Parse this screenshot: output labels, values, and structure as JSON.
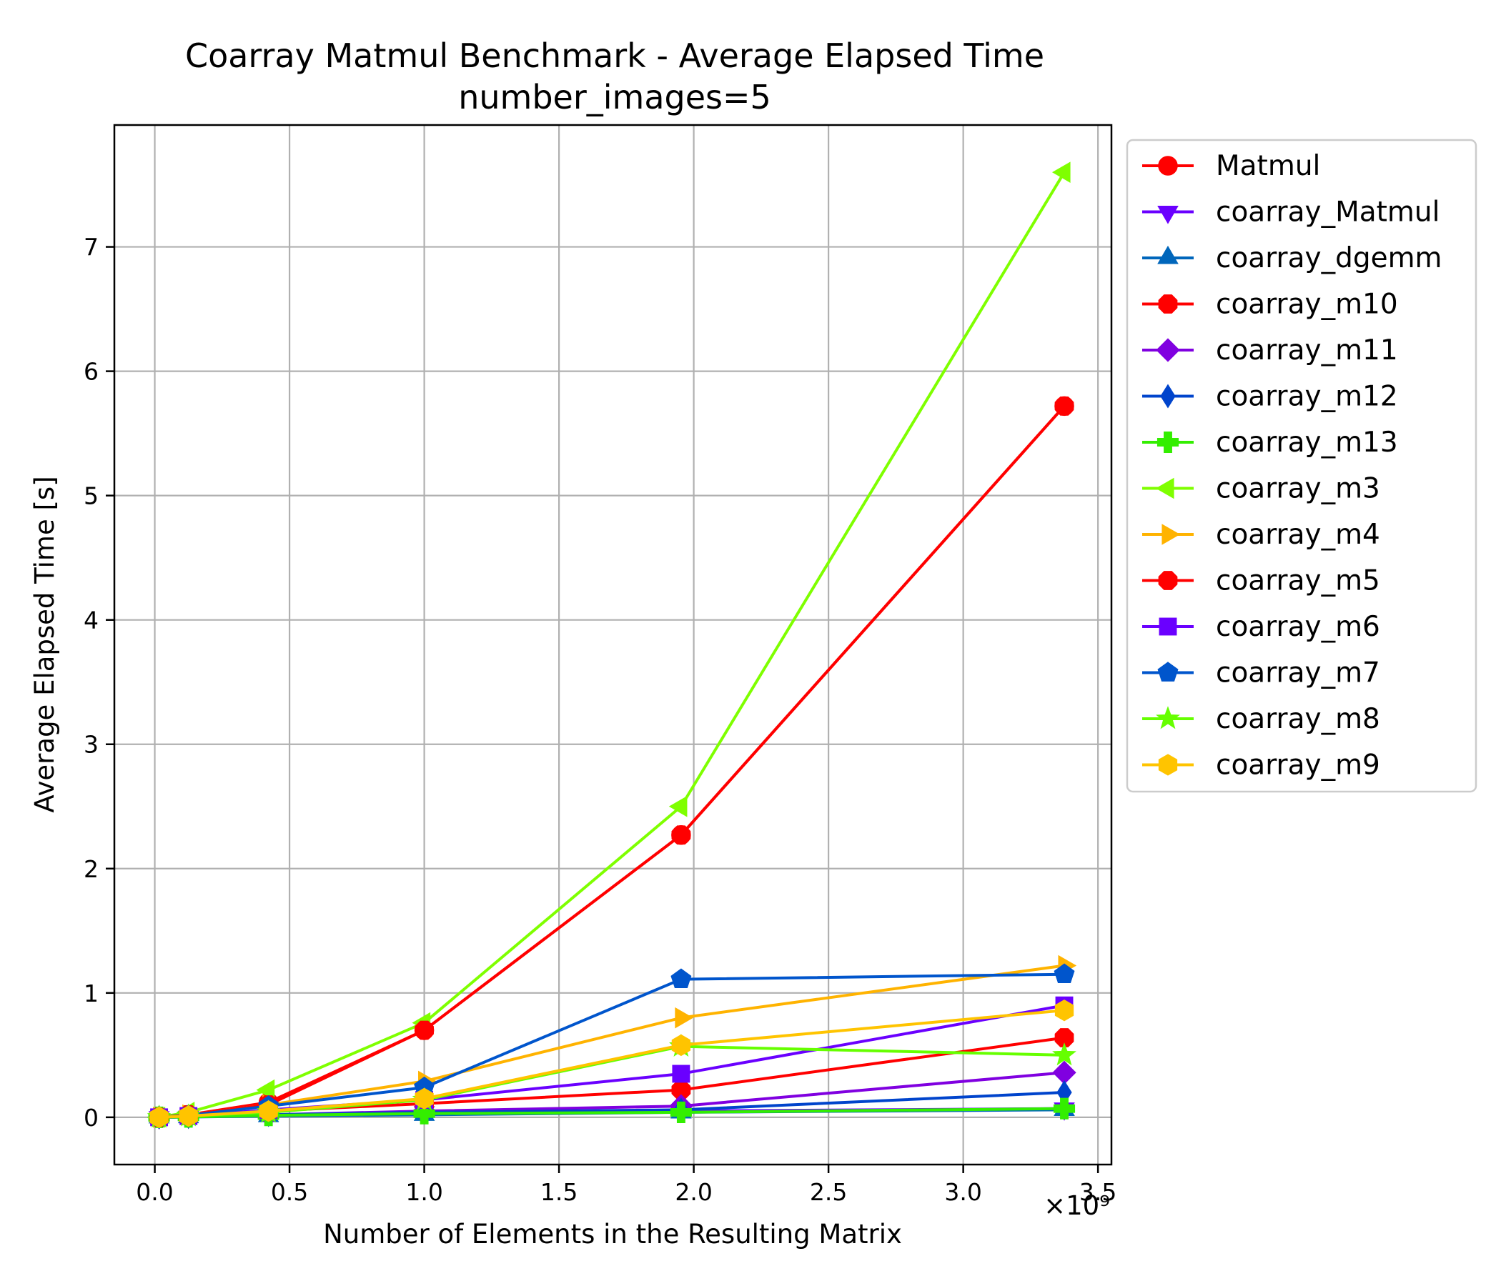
{
  "chart_data": {
    "type": "line",
    "title": "Coarray Matmul Benchmark - Average Elapsed Time",
    "subtitle": "number_images=5",
    "xlabel": "Number of Elements in the Resulting Matrix",
    "ylabel": "Average Elapsed Time [s]",
    "x_multiplier_label": "×10⁹",
    "xlim": [
      -0.15,
      3.55
    ],
    "ylim": [
      -0.38,
      7.98
    ],
    "xticks": [
      0.0,
      0.5,
      1.0,
      1.5,
      2.0,
      2.5,
      3.0,
      3.5
    ],
    "xtick_labels": [
      "0.0",
      "0.5",
      "1.0",
      "1.5",
      "2.0",
      "2.5",
      "3.0",
      "3.5"
    ],
    "yticks": [
      0,
      1,
      2,
      3,
      4,
      5,
      6,
      7
    ],
    "ytick_labels": [
      "0",
      "1",
      "2",
      "3",
      "4",
      "5",
      "6",
      "7"
    ],
    "grid": true,
    "legend_position": "outside-right",
    "x": [
      0.016,
      0.125,
      0.422,
      1.0,
      1.953,
      3.375
    ],
    "series": [
      {
        "name": "Matmul",
        "color": "#ff0000",
        "marker": "circle",
        "values": [
          0.0,
          0.02,
          0.12,
          0.7,
          2.27,
          5.72
        ]
      },
      {
        "name": "coarray_Matmul",
        "color": "#6a00ff",
        "marker": "triangle-down",
        "values": [
          0.0,
          0.003,
          0.02,
          0.04,
          0.05,
          0.07
        ]
      },
      {
        "name": "coarray_dgemm",
        "color": "#0066bb",
        "marker": "triangle-up",
        "values": [
          0.0,
          0.002,
          0.01,
          0.02,
          0.04,
          0.06
        ]
      },
      {
        "name": "coarray_m10",
        "color": "#ff0000",
        "marker": "octagon",
        "values": [
          0.0,
          0.01,
          0.05,
          0.11,
          0.22,
          0.64
        ]
      },
      {
        "name": "coarray_m11",
        "color": "#8000e0",
        "marker": "diamond",
        "values": [
          0.0,
          0.005,
          0.02,
          0.05,
          0.09,
          0.36
        ]
      },
      {
        "name": "coarray_m12",
        "color": "#0044cc",
        "marker": "thin-diamond",
        "values": [
          0.0,
          0.004,
          0.02,
          0.04,
          0.06,
          0.2
        ]
      },
      {
        "name": "coarray_m13",
        "color": "#33ee00",
        "marker": "plus",
        "values": [
          0.0,
          0.003,
          0.015,
          0.03,
          0.04,
          0.07
        ]
      },
      {
        "name": "coarray_m3",
        "color": "#7fff00",
        "marker": "triangle-left",
        "values": [
          0.0,
          0.04,
          0.22,
          0.76,
          2.5,
          7.6
        ]
      },
      {
        "name": "coarray_m4",
        "color": "#ffb300",
        "marker": "triangle-right",
        "values": [
          0.0,
          0.02,
          0.1,
          0.29,
          0.8,
          1.22
        ]
      },
      {
        "name": "coarray_m5",
        "color": "#ff0000",
        "marker": "octagon",
        "values": [
          0.0,
          0.02,
          0.1,
          0.7,
          2.27,
          5.72
        ]
      },
      {
        "name": "coarray_m6",
        "color": "#6a00ff",
        "marker": "square",
        "values": [
          0.0,
          0.01,
          0.06,
          0.14,
          0.35,
          0.9
        ]
      },
      {
        "name": "coarray_m7",
        "color": "#0055cc",
        "marker": "pentagon",
        "values": [
          0.0,
          0.015,
          0.09,
          0.24,
          1.11,
          1.15
        ]
      },
      {
        "name": "coarray_m8",
        "color": "#66ff00",
        "marker": "star",
        "values": [
          0.0,
          0.01,
          0.04,
          0.14,
          0.57,
          0.5
        ]
      },
      {
        "name": "coarray_m9",
        "color": "#ffc400",
        "marker": "hexagon",
        "values": [
          0.0,
          0.01,
          0.05,
          0.15,
          0.58,
          0.86
        ]
      }
    ]
  }
}
